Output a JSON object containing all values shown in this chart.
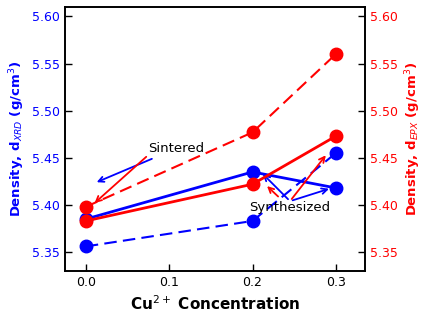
{
  "x": [
    0.0,
    0.2,
    0.3
  ],
  "blue_solid": [
    5.385,
    5.435,
    5.418
  ],
  "red_solid": [
    5.383,
    5.422,
    5.473
  ],
  "blue_dashed": [
    5.356,
    5.383,
    5.455
  ],
  "red_dashed": [
    5.398,
    5.477,
    5.56
  ],
  "xlabel": "Cu$^{2+}$ Concentration",
  "ylabel_left": "Density, d$_{XRD}$ (g/cm$^{3}$)",
  "ylabel_right": "Density, d$_{EPX}$ (g/cm$^{3}$)",
  "ylim": [
    5.33,
    5.61
  ],
  "xlim": [
    -0.025,
    0.335
  ],
  "yticks": [
    5.35,
    5.4,
    5.45,
    5.5,
    5.55,
    5.6
  ],
  "xticks": [
    0.0,
    0.1,
    0.2,
    0.3
  ],
  "blue_color": "#0000FF",
  "red_color": "#FF0000",
  "label_sintered": "Sintered",
  "label_synthesized": "Synthesized"
}
